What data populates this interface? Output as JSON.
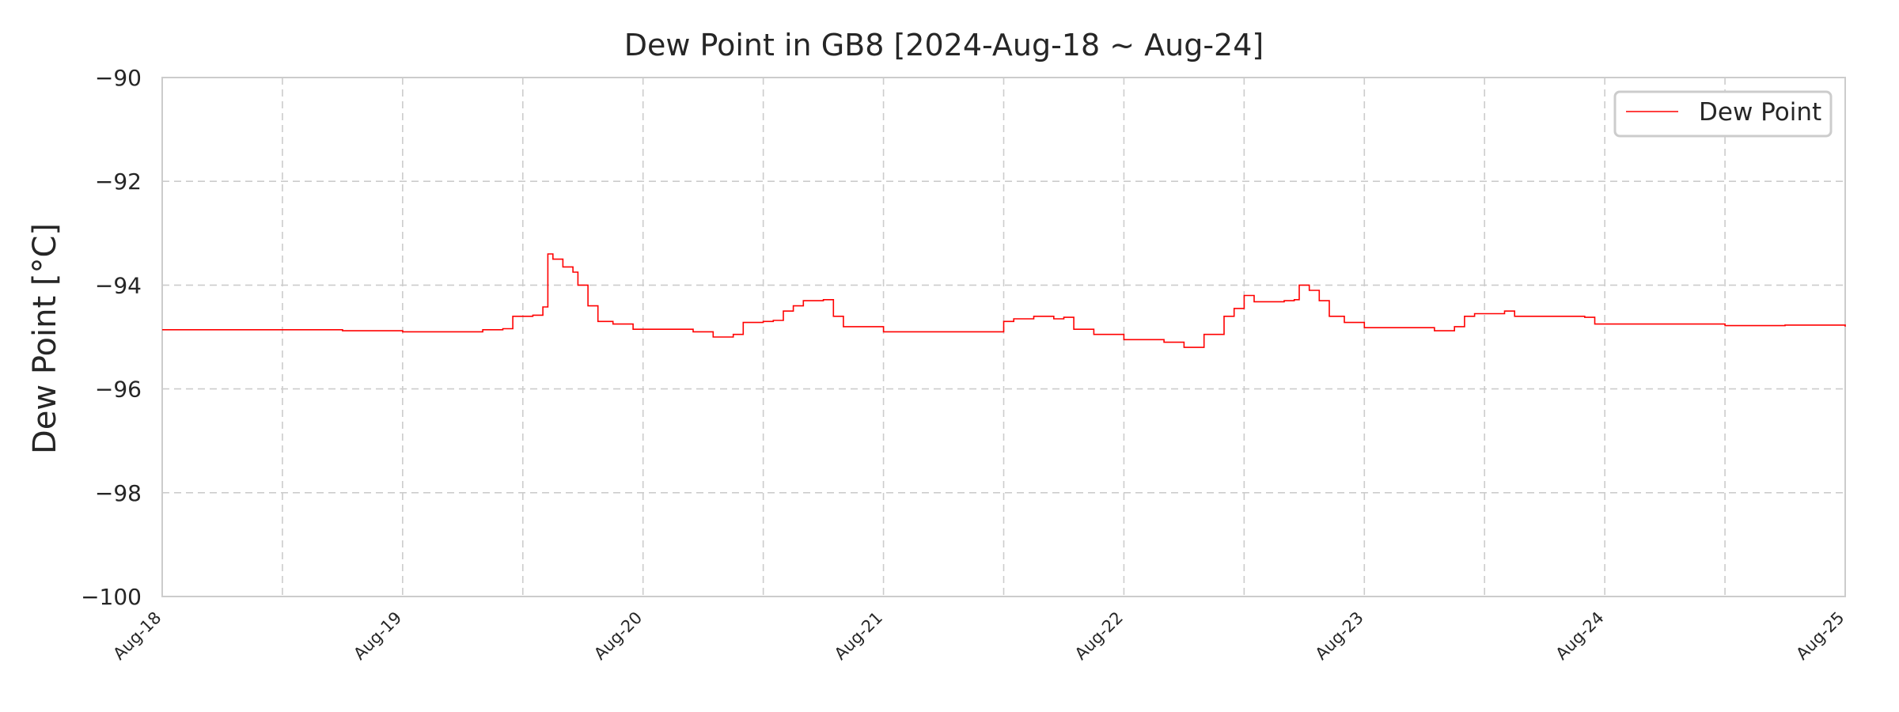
{
  "chart_data": {
    "type": "line",
    "title": "Dew Point in GB8 [2024-Aug-18 ~ Aug-24]",
    "xlabel": "",
    "ylabel": "Dew Point [°C]",
    "x_range": [
      "2024-08-18",
      "2024-08-25"
    ],
    "ylim": [
      -100,
      -90
    ],
    "y_ticks": [
      -90,
      -92,
      -94,
      -96,
      -98,
      -100
    ],
    "y_tick_labels": [
      "−90",
      "−92",
      "−94",
      "−96",
      "−98",
      "−100"
    ],
    "x_ticks": [
      "2024-08-18",
      "2024-08-19",
      "2024-08-20",
      "2024-08-21",
      "2024-08-22",
      "2024-08-23",
      "2024-08-24",
      "2024-08-25"
    ],
    "x_tick_labels": [
      "Aug-18",
      "Aug-19",
      "Aug-20",
      "Aug-21",
      "Aug-22",
      "Aug-23",
      "Aug-24",
      "Aug-25"
    ],
    "grid": true,
    "legend_position": "top-right",
    "series": [
      {
        "name": "Dew Point",
        "color": "#ff0000",
        "points": [
          [
            "2024-08-18 00:00",
            -94.86
          ],
          [
            "2024-08-18 12:00",
            -94.86
          ],
          [
            "2024-08-18 18:00",
            -94.88
          ],
          [
            "2024-08-19 00:00",
            -94.9
          ],
          [
            "2024-08-19 07:00",
            -94.9
          ],
          [
            "2024-08-19 08:00",
            -94.86
          ],
          [
            "2024-08-19 10:00",
            -94.84
          ],
          [
            "2024-08-19 11:00",
            -94.6
          ],
          [
            "2024-08-19 13:00",
            -94.58
          ],
          [
            "2024-08-19 14:00",
            -94.42
          ],
          [
            "2024-08-19 14:30",
            -93.4
          ],
          [
            "2024-08-19 15:00",
            -93.5
          ],
          [
            "2024-08-19 16:00",
            -93.65
          ],
          [
            "2024-08-19 17:00",
            -93.75
          ],
          [
            "2024-08-19 17:30",
            -94.0
          ],
          [
            "2024-08-19 18:30",
            -94.4
          ],
          [
            "2024-08-19 19:30",
            -94.7
          ],
          [
            "2024-08-19 21:00",
            -94.75
          ],
          [
            "2024-08-19 23:00",
            -94.85
          ],
          [
            "2024-08-20 05:00",
            -94.9
          ],
          [
            "2024-08-20 07:00",
            -95.0
          ],
          [
            "2024-08-20 09:00",
            -94.95
          ],
          [
            "2024-08-20 10:00",
            -94.72
          ],
          [
            "2024-08-20 12:00",
            -94.7
          ],
          [
            "2024-08-20 13:00",
            -94.68
          ],
          [
            "2024-08-20 14:00",
            -94.5
          ],
          [
            "2024-08-20 15:00",
            -94.4
          ],
          [
            "2024-08-20 16:00",
            -94.3
          ],
          [
            "2024-08-20 18:00",
            -94.28
          ],
          [
            "2024-08-20 19:00",
            -94.6
          ],
          [
            "2024-08-20 20:00",
            -94.8
          ],
          [
            "2024-08-21 00:00",
            -94.9
          ],
          [
            "2024-08-21 08:00",
            -94.9
          ],
          [
            "2024-08-21 10:00",
            -94.9
          ],
          [
            "2024-08-21 12:00",
            -94.7
          ],
          [
            "2024-08-21 13:00",
            -94.65
          ],
          [
            "2024-08-21 15:00",
            -94.6
          ],
          [
            "2024-08-21 17:00",
            -94.65
          ],
          [
            "2024-08-21 18:00",
            -94.62
          ],
          [
            "2024-08-21 19:00",
            -94.85
          ],
          [
            "2024-08-21 21:00",
            -94.95
          ],
          [
            "2024-08-22 00:00",
            -95.05
          ],
          [
            "2024-08-22 04:00",
            -95.1
          ],
          [
            "2024-08-22 06:00",
            -95.2
          ],
          [
            "2024-08-22 08:00",
            -94.95
          ],
          [
            "2024-08-22 10:00",
            -94.6
          ],
          [
            "2024-08-22 11:00",
            -94.45
          ],
          [
            "2024-08-22 12:00",
            -94.2
          ],
          [
            "2024-08-22 13:00",
            -94.32
          ],
          [
            "2024-08-22 16:00",
            -94.3
          ],
          [
            "2024-08-22 17:00",
            -94.28
          ],
          [
            "2024-08-22 17:30",
            -94.0
          ],
          [
            "2024-08-22 18:30",
            -94.1
          ],
          [
            "2024-08-22 19:30",
            -94.3
          ],
          [
            "2024-08-22 20:30",
            -94.6
          ],
          [
            "2024-08-22 22:00",
            -94.72
          ],
          [
            "2024-08-23 00:00",
            -94.82
          ],
          [
            "2024-08-23 07:00",
            -94.88
          ],
          [
            "2024-08-23 09:00",
            -94.8
          ],
          [
            "2024-08-23 10:00",
            -94.6
          ],
          [
            "2024-08-23 11:00",
            -94.55
          ],
          [
            "2024-08-23 14:00",
            -94.5
          ],
          [
            "2024-08-23 15:00",
            -94.6
          ],
          [
            "2024-08-23 22:00",
            -94.62
          ],
          [
            "2024-08-23 23:00",
            -94.75
          ],
          [
            "2024-08-24 06:00",
            -94.75
          ],
          [
            "2024-08-24 12:00",
            -94.78
          ],
          [
            "2024-08-24 18:00",
            -94.77
          ],
          [
            "2024-08-25 00:00",
            -94.8
          ]
        ]
      }
    ]
  }
}
